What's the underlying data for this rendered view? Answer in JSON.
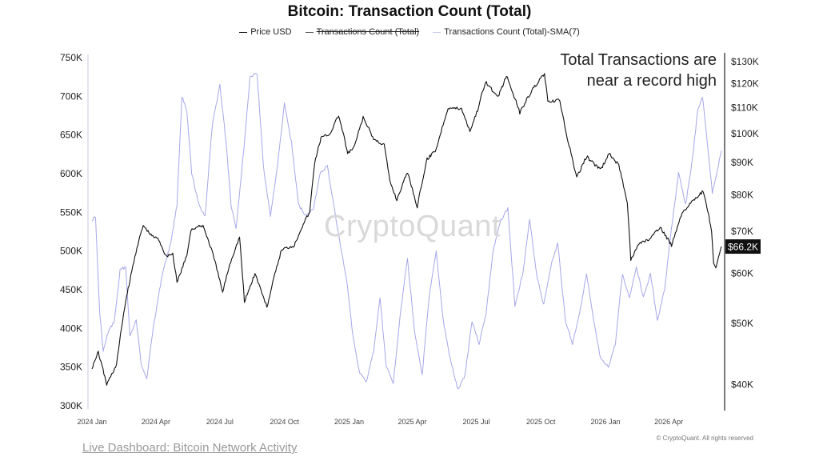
{
  "chart_data": {
    "type": "line",
    "title": "Bitcoin: Transaction Count (Total)",
    "legend": [
      {
        "name": "Price USD",
        "color": "#111111",
        "hidden": false
      },
      {
        "name": "Transactions Count (Total)",
        "color": "#7f7fd6",
        "hidden": true
      },
      {
        "name": "Transactions Count (Total)-SMA(7)",
        "color": "#9a9ae6",
        "hidden": false
      }
    ],
    "legend_position": "top-center",
    "annotation": "Total Transactions are\nnear a record high",
    "watermark": "CryptoQuant",
    "x_ticks": [
      "2024 Jan",
      "2024 Apr",
      "2024 Jul",
      "2024 Oct",
      "2025 Jan",
      "2025 Apr",
      "2025 Jul",
      "2025 Oct",
      "2026 Jan",
      "2026 Apr"
    ],
    "x_range": [
      "2024-01-01",
      "2026-06-15"
    ],
    "left_axis": {
      "ticks": [
        "750K",
        "700K",
        "650K",
        "600K",
        "550K",
        "500K",
        "450K",
        "400K",
        "350K",
        "300K"
      ],
      "range": [
        300000,
        750000
      ]
    },
    "right_axis": {
      "scale": "log",
      "ticks": [
        "$130K",
        "$120K",
        "$110K",
        "$100K",
        "$90K",
        "$80K",
        "$70K",
        "$60K",
        "$50K",
        "$40K"
      ],
      "tick_values": [
        130000,
        120000,
        110000,
        100000,
        90000,
        80000,
        70000,
        60000,
        50000,
        40000
      ],
      "range": [
        37000,
        132000
      ]
    },
    "current_price_label": "$66.2K",
    "series": [
      {
        "name": "Price USD",
        "axis": "right",
        "points": [
          [
            "2024-01-01",
            42500
          ],
          [
            "2024-01-10",
            45000
          ],
          [
            "2024-01-22",
            40000
          ],
          [
            "2024-02-05",
            43000
          ],
          [
            "2024-02-15",
            51800
          ],
          [
            "2024-02-28",
            61500
          ],
          [
            "2024-03-05",
            66000
          ],
          [
            "2024-03-14",
            71500
          ],
          [
            "2024-03-25",
            69000
          ],
          [
            "2024-04-05",
            68000
          ],
          [
            "2024-04-15",
            64000
          ],
          [
            "2024-04-25",
            64500
          ],
          [
            "2024-05-01",
            58000
          ],
          [
            "2024-05-15",
            64000
          ],
          [
            "2024-05-21",
            70500
          ],
          [
            "2024-06-07",
            71500
          ],
          [
            "2024-06-20",
            65000
          ],
          [
            "2024-07-05",
            56000
          ],
          [
            "2024-07-15",
            62000
          ],
          [
            "2024-07-29",
            68500
          ],
          [
            "2024-08-05",
            54000
          ],
          [
            "2024-08-20",
            60000
          ],
          [
            "2024-09-06",
            53000
          ],
          [
            "2024-09-27",
            65500
          ],
          [
            "2024-10-15",
            66500
          ],
          [
            "2024-10-29",
            72500
          ],
          [
            "2024-11-06",
            75000
          ],
          [
            "2024-11-13",
            90000
          ],
          [
            "2024-11-22",
            98500
          ],
          [
            "2024-12-05",
            100000
          ],
          [
            "2024-12-17",
            107000
          ],
          [
            "2024-12-30",
            93000
          ],
          [
            "2025-01-08",
            95000
          ],
          [
            "2025-01-21",
            106000
          ],
          [
            "2025-02-05",
            98000
          ],
          [
            "2025-02-20",
            96000
          ],
          [
            "2025-02-28",
            84000
          ],
          [
            "2025-03-10",
            78500
          ],
          [
            "2025-03-25",
            87000
          ],
          [
            "2025-04-08",
            76500
          ],
          [
            "2025-04-22",
            91000
          ],
          [
            "2025-05-05",
            94500
          ],
          [
            "2025-05-22",
            110000
          ],
          [
            "2025-06-10",
            109500
          ],
          [
            "2025-06-22",
            101000
          ],
          [
            "2025-07-03",
            109000
          ],
          [
            "2025-07-14",
            121000
          ],
          [
            "2025-08-01",
            114000
          ],
          [
            "2025-08-13",
            123500
          ],
          [
            "2025-09-01",
            108000
          ],
          [
            "2025-09-18",
            117000
          ],
          [
            "2025-10-06",
            124500
          ],
          [
            "2025-10-11",
            112000
          ],
          [
            "2025-10-28",
            113000
          ],
          [
            "2025-11-05",
            101000
          ],
          [
            "2025-11-21",
            85000
          ],
          [
            "2025-12-05",
            92000
          ],
          [
            "2025-12-25",
            87500
          ],
          [
            "2026-01-06",
            93000
          ],
          [
            "2026-01-20",
            89000
          ],
          [
            "2026-02-01",
            78000
          ],
          [
            "2026-02-06",
            63000
          ],
          [
            "2026-02-18",
            67000
          ],
          [
            "2026-03-05",
            68000
          ],
          [
            "2026-03-20",
            71000
          ],
          [
            "2026-04-05",
            66500
          ],
          [
            "2026-04-20",
            75000
          ],
          [
            "2026-05-05",
            78000
          ],
          [
            "2026-05-20",
            81000
          ],
          [
            "2026-05-28",
            74000
          ],
          [
            "2026-06-01",
            70000
          ],
          [
            "2026-06-04",
            62000
          ],
          [
            "2026-06-07",
            61000
          ],
          [
            "2026-06-15",
            66200
          ]
        ]
      },
      {
        "name": "Transactions Count (Total)-SMA(7)",
        "axis": "left",
        "points": [
          [
            "2024-01-01",
            540000
          ],
          [
            "2024-01-06",
            545000
          ],
          [
            "2024-01-12",
            420000
          ],
          [
            "2024-01-17",
            370000
          ],
          [
            "2024-01-24",
            395000
          ],
          [
            "2024-02-02",
            410000
          ],
          [
            "2024-02-10",
            475000
          ],
          [
            "2024-02-18",
            480000
          ],
          [
            "2024-02-24",
            390000
          ],
          [
            "2024-03-04",
            410000
          ],
          [
            "2024-03-11",
            355000
          ],
          [
            "2024-03-19",
            335000
          ],
          [
            "2024-03-28",
            400000
          ],
          [
            "2024-04-10",
            470000
          ],
          [
            "2024-04-22",
            510000
          ],
          [
            "2024-05-01",
            560000
          ],
          [
            "2024-05-08",
            700000
          ],
          [
            "2024-05-15",
            680000
          ],
          [
            "2024-05-22",
            600000
          ],
          [
            "2024-06-01",
            560000
          ],
          [
            "2024-06-10",
            545000
          ],
          [
            "2024-06-20",
            660000
          ],
          [
            "2024-07-01",
            715000
          ],
          [
            "2024-07-10",
            640000
          ],
          [
            "2024-07-17",
            560000
          ],
          [
            "2024-07-24",
            530000
          ],
          [
            "2024-08-03",
            620000
          ],
          [
            "2024-08-13",
            725000
          ],
          [
            "2024-08-23",
            730000
          ],
          [
            "2024-09-01",
            610000
          ],
          [
            "2024-09-11",
            545000
          ],
          [
            "2024-09-21",
            610000
          ],
          [
            "2024-10-01",
            690000
          ],
          [
            "2024-10-11",
            640000
          ],
          [
            "2024-10-21",
            560000
          ],
          [
            "2024-11-01",
            545000
          ],
          [
            "2024-11-11",
            555000
          ],
          [
            "2024-11-21",
            600000
          ],
          [
            "2024-12-01",
            610000
          ],
          [
            "2024-12-10",
            560000
          ],
          [
            "2024-12-20",
            505000
          ],
          [
            "2024-12-29",
            460000
          ],
          [
            "2025-01-05",
            400000
          ],
          [
            "2025-01-15",
            345000
          ],
          [
            "2025-01-25",
            330000
          ],
          [
            "2025-02-05",
            370000
          ],
          [
            "2025-02-14",
            440000
          ],
          [
            "2025-02-23",
            350000
          ],
          [
            "2025-03-05",
            330000
          ],
          [
            "2025-03-15",
            420000
          ],
          [
            "2025-03-25",
            490000
          ],
          [
            "2025-04-05",
            390000
          ],
          [
            "2025-04-15",
            340000
          ],
          [
            "2025-04-25",
            440000
          ],
          [
            "2025-05-05",
            500000
          ],
          [
            "2025-05-15",
            410000
          ],
          [
            "2025-05-25",
            360000
          ],
          [
            "2025-06-05",
            320000
          ],
          [
            "2025-06-15",
            340000
          ],
          [
            "2025-06-25",
            410000
          ],
          [
            "2025-07-05",
            380000
          ],
          [
            "2025-07-15",
            420000
          ],
          [
            "2025-07-25",
            500000
          ],
          [
            "2025-08-05",
            540000
          ],
          [
            "2025-08-15",
            555000
          ],
          [
            "2025-08-25",
            430000
          ],
          [
            "2025-09-05",
            470000
          ],
          [
            "2025-09-15",
            540000
          ],
          [
            "2025-09-25",
            470000
          ],
          [
            "2025-10-05",
            430000
          ],
          [
            "2025-10-15",
            480000
          ],
          [
            "2025-10-25",
            510000
          ],
          [
            "2025-11-05",
            410000
          ],
          [
            "2025-11-15",
            380000
          ],
          [
            "2025-11-25",
            420000
          ],
          [
            "2025-12-05",
            470000
          ],
          [
            "2025-12-15",
            410000
          ],
          [
            "2025-12-25",
            360000
          ],
          [
            "2026-01-05",
            350000
          ],
          [
            "2026-01-15",
            380000
          ],
          [
            "2026-01-25",
            470000
          ],
          [
            "2026-02-04",
            440000
          ],
          [
            "2026-02-14",
            480000
          ],
          [
            "2026-02-24",
            440000
          ],
          [
            "2026-03-06",
            470000
          ],
          [
            "2026-03-16",
            410000
          ],
          [
            "2026-03-26",
            450000
          ],
          [
            "2026-04-05",
            530000
          ],
          [
            "2026-04-15",
            600000
          ],
          [
            "2026-04-25",
            560000
          ],
          [
            "2026-05-05",
            620000
          ],
          [
            "2026-05-12",
            680000
          ],
          [
            "2026-05-19",
            700000
          ],
          [
            "2026-05-26",
            640000
          ],
          [
            "2026-06-02",
            575000
          ],
          [
            "2026-06-08",
            600000
          ],
          [
            "2026-06-15",
            630000
          ]
        ]
      }
    ]
  },
  "copyright": "© CryptoQuant. All rights reserved",
  "footer_link": "Live Dashboard: Bitcoin Network Activity"
}
